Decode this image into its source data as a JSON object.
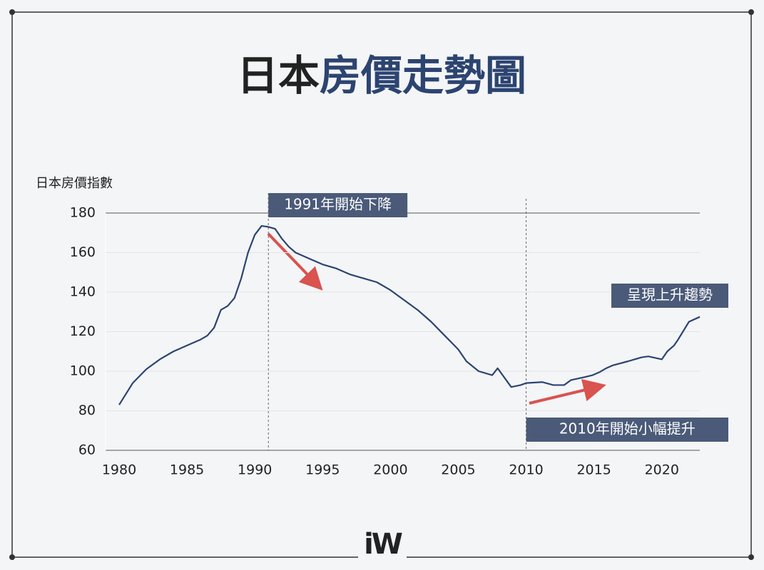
{
  "chart_data": {
    "type": "line",
    "title": [
      "日本",
      "房價走勢圖"
    ],
    "y_label": "日本房價指數",
    "logo": "iW",
    "color": "#2c4470",
    "x": [
      1980,
      1981,
      1982,
      1983,
      1984,
      1985,
      1986,
      1986.5,
      1987,
      1987.5,
      1988,
      1988.5,
      1989,
      1989.5,
      1990,
      1990.5,
      1991,
      1991.5,
      1992,
      1992.5,
      1993,
      1994,
      1995,
      1996,
      1997,
      1998,
      1999,
      2000,
      2001,
      2002,
      2003,
      2004,
      2005,
      2005.6,
      2006.5,
      2007.5,
      2007.9,
      2008.9,
      2009.6,
      2010,
      2011.2,
      2012,
      2012.8,
      2013.3,
      2014.3,
      2014.9,
      2015.4,
      2015.9,
      2016.4,
      2017.5,
      2018.5,
      2019,
      2020,
      2020.4,
      2020.9,
      2021.2,
      2022,
      2022.8
    ],
    "values": [
      83,
      94,
      101,
      106,
      110,
      113,
      116,
      118,
      122,
      131,
      133,
      137,
      147,
      160,
      169,
      173.5,
      173,
      172,
      167,
      163,
      160,
      157,
      154,
      152,
      149,
      147,
      145,
      141,
      136,
      131,
      125,
      118,
      111,
      105,
      100,
      98,
      101.5,
      92,
      93,
      94,
      94.5,
      93,
      93,
      95.5,
      97,
      98,
      99.5,
      101.5,
      103,
      105,
      107,
      107.5,
      106,
      110,
      113,
      116,
      125,
      127.5
    ],
    "xlim": [
      1979,
      2022.8
    ],
    "xticks": [
      1980,
      1985,
      1990,
      1995,
      2000,
      2005,
      2010,
      2015,
      2020
    ],
    "ylim": [
      60,
      180
    ],
    "yticks": [
      60,
      80,
      100,
      120,
      140,
      160,
      180
    ],
    "grid": true,
    "annotations": [
      {
        "x": 1991,
        "text": "1991年開始下降"
      },
      {
        "x": 2010,
        "text": "2010年開始小幅提升"
      },
      {
        "text": "呈現上升趨勢"
      }
    ]
  }
}
